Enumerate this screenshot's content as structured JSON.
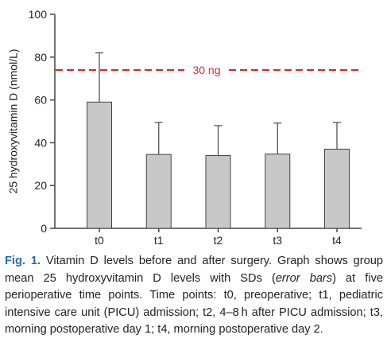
{
  "chart_data": {
    "type": "bar",
    "categories": [
      "t0",
      "t1",
      "t2",
      "t3",
      "t4"
    ],
    "values": [
      59,
      34.5,
      34,
      34.7,
      37
    ],
    "errors": [
      23,
      15,
      14,
      14.5,
      12.5
    ],
    "title": "",
    "xlabel": "",
    "ylabel": "25 hydroxyvitamin D (nmol/L)",
    "ylim": [
      0,
      100
    ],
    "yticks": [
      0,
      20,
      40,
      60,
      80,
      100
    ],
    "reference_line": {
      "value": 74,
      "label": "30 ng"
    },
    "grid": false,
    "colors": {
      "bar_fill": "#c8c8c8",
      "bar_stroke": "#444444",
      "reference": "#d9262b",
      "axis": "#444444"
    }
  },
  "caption": {
    "label": "Fig. 1.",
    "text_before": " Vitamin D levels before and after surgery. Graph shows group mean 25 hydroxyvitamin D levels with SDs (",
    "emphasis": "error bars",
    "text_after": ") at five perioperative time points. Time points: t0, preoperative; t1, pediatric intensive care unit (PICU) admission; t2, 4–8 h after PICU admission; t3, morning postoperative day 1; t4, morning postoperative day 2."
  }
}
